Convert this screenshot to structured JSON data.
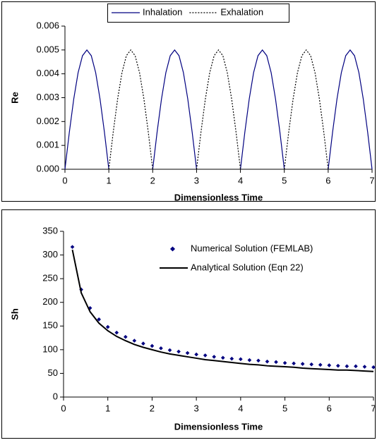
{
  "chart_data": [
    {
      "type": "line",
      "ylabel": "Re",
      "xlabel": "Dimensionless Time",
      "legend": "top-center",
      "x": [
        0,
        0.1,
        0.2,
        0.3,
        0.4,
        0.5,
        0.6,
        0.7,
        0.8,
        0.9,
        1,
        1.1,
        1.2,
        1.3,
        1.4,
        1.5,
        1.6,
        1.7,
        1.8,
        1.9,
        2,
        2.1,
        2.2,
        2.3,
        2.4,
        2.5,
        2.6,
        2.7,
        2.8,
        2.9,
        3,
        3.1,
        3.2,
        3.3,
        3.4,
        3.5,
        3.6,
        3.7,
        3.8,
        3.9,
        4,
        4.1,
        4.2,
        4.3,
        4.4,
        4.5,
        4.6,
        4.7,
        4.8,
        4.9,
        5,
        5.1,
        5.2,
        5.3,
        5.4,
        5.5,
        5.6,
        5.7,
        5.8,
        5.9,
        6,
        6.1,
        6.2,
        6.3,
        6.4,
        6.5,
        6.6,
        6.7,
        6.8,
        6.9,
        7
      ],
      "series": [
        {
          "name": "Inhalation",
          "color": "#000080",
          "style": "solid",
          "values": [
            0,
            0.00155,
            0.00294,
            0.00405,
            0.00476,
            0.005,
            0.00476,
            0.00405,
            0.00294,
            0.00155,
            0,
            null,
            null,
            null,
            null,
            null,
            null,
            null,
            null,
            null,
            0,
            0.00155,
            0.00294,
            0.00405,
            0.00476,
            0.005,
            0.00476,
            0.00405,
            0.00294,
            0.00155,
            0,
            null,
            null,
            null,
            null,
            null,
            null,
            null,
            null,
            null,
            0,
            0.00155,
            0.00294,
            0.00405,
            0.00476,
            0.005,
            0.00476,
            0.00405,
            0.00294,
            0.00155,
            0,
            null,
            null,
            null,
            null,
            null,
            null,
            null,
            null,
            null,
            0,
            0.00155,
            0.00294,
            0.00405,
            0.00476,
            0.005,
            0.00476,
            0.00405,
            0.00294,
            0.00155,
            0
          ]
        },
        {
          "name": "Exhalation",
          "color": "#000000",
          "style": "dotted",
          "values": [
            null,
            null,
            null,
            null,
            null,
            null,
            null,
            null,
            null,
            null,
            0,
            0.00155,
            0.00294,
            0.00405,
            0.00476,
            0.005,
            0.00476,
            0.00405,
            0.00294,
            0.00155,
            0,
            null,
            null,
            null,
            null,
            null,
            null,
            null,
            null,
            null,
            0,
            0.00155,
            0.00294,
            0.00405,
            0.00476,
            0.005,
            0.00476,
            0.00405,
            0.00294,
            0.00155,
            0,
            null,
            null,
            null,
            null,
            null,
            null,
            null,
            null,
            null,
            0,
            0.00155,
            0.00294,
            0.00405,
            0.00476,
            0.005,
            0.00476,
            0.00405,
            0.00294,
            0.00155,
            0,
            null,
            null,
            null,
            null,
            null,
            null,
            null,
            null,
            null,
            null
          ]
        }
      ],
      "xlim": [
        0,
        7
      ],
      "xticks": [
        0,
        1,
        2,
        3,
        4,
        5,
        6,
        7
      ],
      "ylim": [
        0,
        0.006
      ],
      "yticks": [
        {
          "value": 0,
          "label": "0.000"
        },
        {
          "value": 0.001,
          "label": "0.001"
        },
        {
          "value": 0.002,
          "label": "0.002"
        },
        {
          "value": 0.003,
          "label": "0.003"
        },
        {
          "value": 0.004,
          "label": "0.004"
        },
        {
          "value": 0.005,
          "label": "0.005"
        },
        {
          "value": 0.006,
          "label": "0.006"
        }
      ]
    },
    {
      "type": "line",
      "ylabel": "Sh",
      "xlabel": "Dimensionless Time",
      "legend": "top-right",
      "x": [
        0.2,
        0.4,
        0.6,
        0.8,
        1,
        1.2,
        1.4,
        1.6,
        1.8,
        2,
        2.2,
        2.4,
        2.6,
        2.8,
        3,
        3.2,
        3.4,
        3.6,
        3.8,
        4,
        4.2,
        4.4,
        4.6,
        4.8,
        5,
        5.2,
        5.4,
        5.6,
        5.8,
        6,
        6.2,
        6.4,
        6.6,
        6.8,
        7
      ],
      "series": [
        {
          "name": "Numerical Solution (FEMLAB)",
          "color": "#000080",
          "style": "markers",
          "values": [
            317,
            227,
            188,
            164,
            148,
            136,
            127,
            119,
            113,
            108,
            103,
            99,
            96,
            93,
            90,
            88,
            85,
            83,
            81,
            80,
            78,
            77,
            75,
            74,
            72,
            71,
            70,
            69,
            68,
            67,
            66,
            65,
            65,
            64,
            63
          ]
        },
        {
          "name": "Analytical Solution (Eqn 22)",
          "color": "#000000",
          "style": "solid",
          "values": [
            311,
            220,
            180,
            156,
            140,
            128,
            119,
            111,
            105,
            100,
            95,
            91,
            88,
            85,
            82,
            79,
            77,
            75,
            73,
            71,
            69,
            68,
            66,
            65,
            64,
            63,
            61,
            60,
            59,
            58,
            57,
            57,
            56,
            55,
            54
          ]
        }
      ],
      "xlim": [
        0,
        7
      ],
      "xticks": [
        0,
        1,
        2,
        3,
        4,
        5,
        6,
        7
      ],
      "ylim": [
        0,
        350
      ],
      "yticks": [
        0,
        50,
        100,
        150,
        200,
        250,
        300,
        350
      ]
    }
  ]
}
